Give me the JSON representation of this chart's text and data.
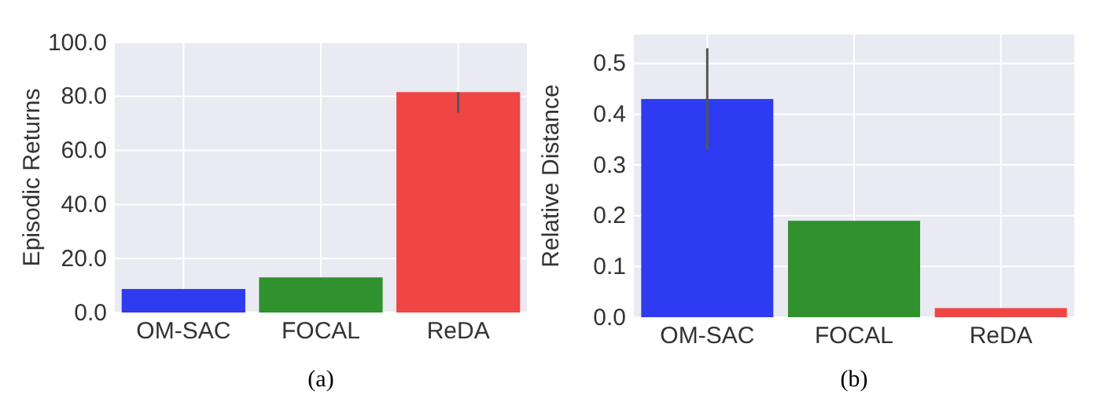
{
  "chart_data": [
    {
      "type": "bar",
      "categories": [
        "OM-SAC",
        "FOCAL",
        "ReDA"
      ],
      "colors": [
        "#2d3cf0",
        "#2f922f",
        "#f04545"
      ],
      "values": [
        8.7,
        13,
        81.6
      ],
      "errors": [
        null,
        null,
        [
          74,
          81.6
        ]
      ],
      "ylabel": "Episodic Returns",
      "xlabel": "(a)",
      "ylim": [
        0,
        100
      ],
      "yticks": [
        {
          "value": 0,
          "label": "0.0"
        },
        {
          "value": 20,
          "label": "20.0"
        },
        {
          "value": 40,
          "label": "40.0"
        },
        {
          "value": 60,
          "label": "60.0"
        },
        {
          "value": 80,
          "label": "80.0"
        },
        {
          "value": 100,
          "label": "100.0"
        }
      ],
      "grid": true
    },
    {
      "type": "bar",
      "categories": [
        "OM-SAC",
        "FOCAL",
        "ReDA"
      ],
      "colors": [
        "#2d3cf0",
        "#2f922f",
        "#f04545"
      ],
      "values": [
        0.43,
        0.19,
        0.018
      ],
      "errors": [
        [
          0.33,
          0.53
        ],
        null,
        null
      ],
      "ylabel": "Relative Distance",
      "xlabel": "(b)",
      "ylim": [
        0,
        0.557
      ],
      "yticks": [
        {
          "value": 0,
          "label": "0.0"
        },
        {
          "value": 0.1,
          "label": "0.1"
        },
        {
          "value": 0.2,
          "label": "0.2"
        },
        {
          "value": 0.3,
          "label": "0.3"
        },
        {
          "value": 0.4,
          "label": "0.4"
        },
        {
          "value": 0.5,
          "label": "0.5"
        }
      ],
      "grid": true
    }
  ]
}
